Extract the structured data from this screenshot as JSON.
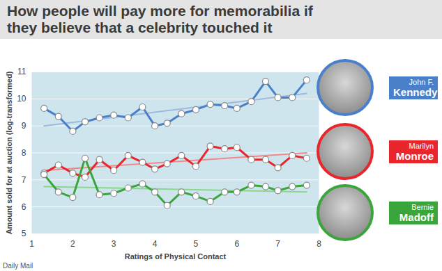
{
  "chart_data": {
    "type": "line",
    "title": "How people will pay more for memorabilia if they believe that a celebrity touched it",
    "x_label": "Ratings of Physical Contact",
    "y_label": "Amount sold for at auction (log-transformed)",
    "source": "Daily Mail",
    "x": [
      1.3,
      1.65,
      2.0,
      2.3,
      2.65,
      3.0,
      3.35,
      3.7,
      4.0,
      4.3,
      4.65,
      5.0,
      5.35,
      5.7,
      6.0,
      6.35,
      6.7,
      7.0,
      7.35,
      7.7
    ],
    "series": [
      {
        "name": "John F. Kennedy",
        "color": "#4a7fc9",
        "marker": "circle",
        "values": [
          9.65,
          9.35,
          8.8,
          9.15,
          9.3,
          9.4,
          9.3,
          9.7,
          9.0,
          9.1,
          9.45,
          9.6,
          9.8,
          9.75,
          9.65,
          9.9,
          10.65,
          10.05,
          10.05,
          10.7
        ],
        "trend": {
          "x": [
            1.3,
            7.7
          ],
          "values": [
            9.0,
            10.2
          ]
        }
      },
      {
        "name": "Marilyn Monroe",
        "color": "#e8262b",
        "marker": "circle",
        "values": [
          7.25,
          7.55,
          7.25,
          7.1,
          7.75,
          7.35,
          7.9,
          7.65,
          7.4,
          7.6,
          7.9,
          7.5,
          8.25,
          8.15,
          8.2,
          7.75,
          7.75,
          7.45,
          7.9,
          7.8
        ],
        "trend": {
          "x": [
            1.3,
            7.7
          ],
          "values": [
            7.35,
            8.0
          ]
        }
      },
      {
        "name": "Bernie Madoff",
        "color": "#3aa53a",
        "marker": "circle",
        "values": [
          7.2,
          6.55,
          6.35,
          7.8,
          6.45,
          6.5,
          6.7,
          6.85,
          6.55,
          6.05,
          6.55,
          6.4,
          6.2,
          6.55,
          6.55,
          6.8,
          6.75,
          6.6,
          6.75,
          6.8
        ],
        "trend": {
          "x": [
            1.3,
            7.7
          ],
          "values": [
            6.75,
            6.55
          ]
        }
      }
    ],
    "xlim": [
      1,
      8
    ],
    "xticks": [
      1,
      2,
      3,
      4,
      5,
      6,
      7,
      8
    ],
    "ylim": [
      5,
      11
    ],
    "yticks": [
      5,
      6,
      7,
      8,
      9,
      10,
      11
    ],
    "grid": true
  }
}
